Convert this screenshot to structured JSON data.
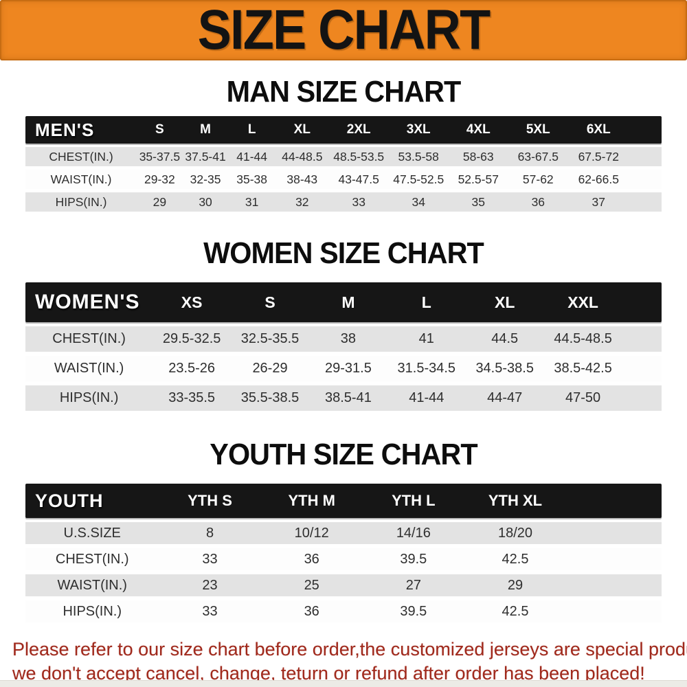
{
  "banner": {
    "title": "SIZE CHART"
  },
  "chart_data": [
    {
      "type": "table",
      "title": "MAN SIZE CHART",
      "header_label": "MEN'S",
      "columns": [
        "S",
        "M",
        "L",
        "XL",
        "2XL",
        "3XL",
        "4XL",
        "5XL",
        "6XL"
      ],
      "rows": [
        {
          "label": "CHEST(IN.)",
          "values": [
            "35-37.5",
            "37.5-41",
            "41-44",
            "44-48.5",
            "48.5-53.5",
            "53.5-58",
            "58-63",
            "63-67.5",
            "67.5-72"
          ]
        },
        {
          "label": "WAIST(IN.)",
          "values": [
            "29-32",
            "32-35",
            "35-38",
            "38-43",
            "43-47.5",
            "47.5-52.5",
            "52.5-57",
            "57-62",
            "62-66.5"
          ]
        },
        {
          "label": "HIPS(IN.)",
          "values": [
            "29",
            "30",
            "31",
            "32",
            "33",
            "34",
            "35",
            "36",
            "37"
          ]
        }
      ]
    },
    {
      "type": "table",
      "title": "WOMEN SIZE CHART",
      "header_label": "WOMEN'S",
      "columns": [
        "XS",
        "S",
        "M",
        "L",
        "XL",
        "XXL"
      ],
      "rows": [
        {
          "label": "CHEST(IN.)",
          "values": [
            "29.5-32.5",
            "32.5-35.5",
            "38",
            "41",
            "44.5",
            "44.5-48.5"
          ]
        },
        {
          "label": "WAIST(IN.)",
          "values": [
            "23.5-26",
            "26-29",
            "29-31.5",
            "31.5-34.5",
            "34.5-38.5",
            "38.5-42.5"
          ]
        },
        {
          "label": "HIPS(IN.)",
          "values": [
            "33-35.5",
            "35.5-38.5",
            "38.5-41",
            "41-44",
            "44-47",
            "47-50"
          ]
        }
      ]
    },
    {
      "type": "table",
      "title": "YOUTH SIZE CHART",
      "header_label": "YOUTH",
      "columns": [
        "YTH S",
        "YTH M",
        "YTH L",
        "YTH XL"
      ],
      "rows": [
        {
          "label": "U.S.SIZE",
          "values": [
            "8",
            "10/12",
            "14/16",
            "18/20"
          ]
        },
        {
          "label": "CHEST(IN.)",
          "values": [
            "33",
            "36",
            "39.5",
            "42.5"
          ]
        },
        {
          "label": "WAIST(IN.)",
          "values": [
            "23",
            "25",
            "27",
            "29"
          ]
        },
        {
          "label": "HIPS(IN.)",
          "values": [
            "33",
            "36",
            "39.5",
            "42.5"
          ]
        }
      ]
    }
  ],
  "disclaimer": {
    "line1": "Please refer to our size chart before order,the customized jerseys are special products,",
    "line2": "we don't accept cancel, change, teturn or refund after order has been placed!"
  },
  "colors": {
    "banner_orange": "#ee8620",
    "header_black": "#161616",
    "row_gray": "#e3e3e3",
    "disclaimer_red": "#a02a1d"
  }
}
